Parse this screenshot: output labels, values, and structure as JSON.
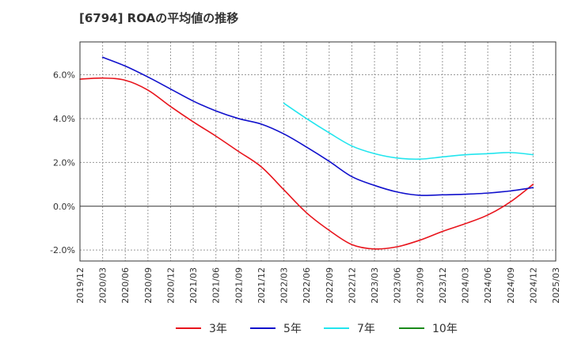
{
  "chart_data": {
    "type": "line",
    "title": "[6794]  ROAの平均値の推移",
    "xlabel": "",
    "ylabel": "",
    "x_ticks": [
      "2019/12",
      "2020/03",
      "2020/06",
      "2020/09",
      "2020/12",
      "2021/03",
      "2021/06",
      "2021/09",
      "2021/12",
      "2022/03",
      "2022/06",
      "2022/09",
      "2022/12",
      "2023/03",
      "2023/06",
      "2023/09",
      "2023/12",
      "2024/03",
      "2024/06",
      "2024/09",
      "2024/12",
      "2025/03"
    ],
    "y_ticks": [
      -2.0,
      0.0,
      2.0,
      4.0,
      6.0
    ],
    "y_tick_format": "percent_1dp",
    "ylim": [
      -2.5,
      7.5
    ],
    "grid": true,
    "zero_line": true,
    "legend_position": "bottom",
    "series": [
      {
        "name": "3年",
        "color": "#e8141c",
        "x": [
          "2019/12",
          "2020/03",
          "2020/06",
          "2020/09",
          "2020/12",
          "2021/03",
          "2021/06",
          "2021/09",
          "2021/12",
          "2022/03",
          "2022/06",
          "2022/09",
          "2022/12",
          "2023/03",
          "2023/06",
          "2023/09",
          "2023/12",
          "2024/03",
          "2024/06",
          "2024/09",
          "2024/12"
        ],
        "values": [
          5.8,
          5.85,
          5.75,
          5.3,
          4.55,
          3.85,
          3.2,
          2.5,
          1.8,
          0.75,
          -0.3,
          -1.1,
          -1.75,
          -1.95,
          -1.85,
          -1.55,
          -1.15,
          -0.8,
          -0.4,
          0.2,
          1.0
        ]
      },
      {
        "name": "5年",
        "color": "#1010cc",
        "x": [
          "2020/03",
          "2020/06",
          "2020/09",
          "2020/12",
          "2021/03",
          "2021/06",
          "2021/09",
          "2021/12",
          "2022/03",
          "2022/06",
          "2022/09",
          "2022/12",
          "2023/03",
          "2023/06",
          "2023/09",
          "2023/12",
          "2024/03",
          "2024/06",
          "2024/09",
          "2024/12"
        ],
        "values": [
          6.8,
          6.4,
          5.9,
          5.35,
          4.8,
          4.35,
          4.0,
          3.75,
          3.3,
          2.7,
          2.05,
          1.35,
          0.95,
          0.65,
          0.5,
          0.52,
          0.55,
          0.6,
          0.7,
          0.85
        ]
      },
      {
        "name": "7年",
        "color": "#22e5ee",
        "x": [
          "2022/03",
          "2022/06",
          "2022/09",
          "2022/12",
          "2023/03",
          "2023/06",
          "2023/09",
          "2023/12",
          "2024/03",
          "2024/06",
          "2024/09",
          "2024/12"
        ],
        "values": [
          4.7,
          4.0,
          3.35,
          2.75,
          2.4,
          2.2,
          2.15,
          2.25,
          2.35,
          2.4,
          2.45,
          2.35
        ]
      },
      {
        "name": "10年",
        "color": "#1a8a1a",
        "x": [],
        "values": []
      }
    ]
  }
}
